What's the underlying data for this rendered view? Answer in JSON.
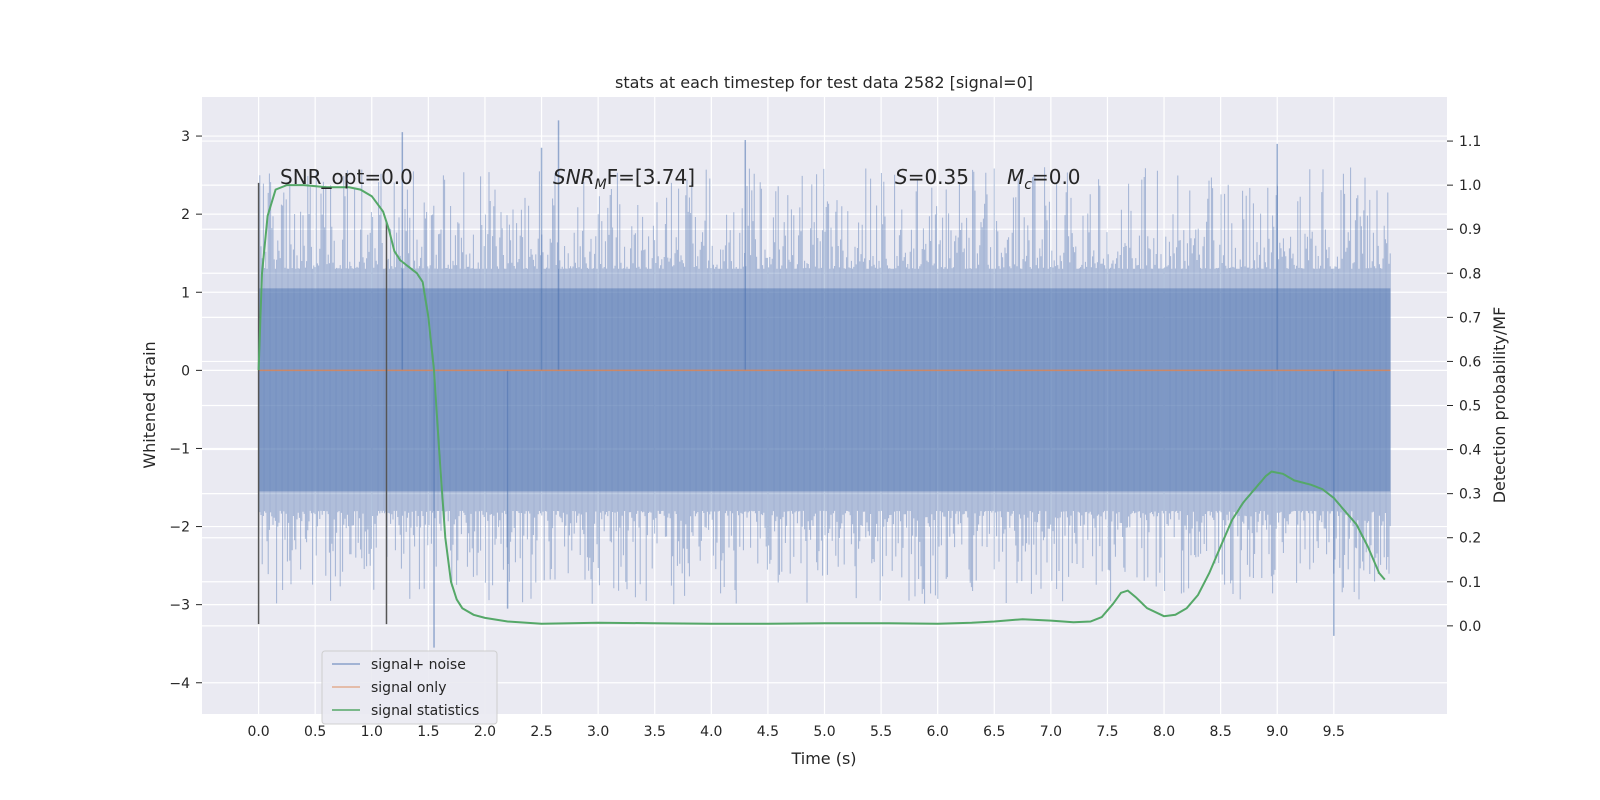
{
  "chart_data": {
    "type": "line",
    "title": "stats at each timestep for test data 2582 [signal=0]",
    "xlabel": "Time (s)",
    "ylabel": "Whitened strain",
    "y2label": "Detection probability/MF",
    "xlim": [
      -0.5,
      10.5
    ],
    "ylim": [
      -4.4,
      3.5
    ],
    "y2lim": [
      -0.2,
      1.2
    ],
    "x_ticks": [
      "0.0",
      "0.5",
      "1.0",
      "1.5",
      "2.0",
      "2.5",
      "3.0",
      "3.5",
      "4.0",
      "4.5",
      "5.0",
      "5.5",
      "6.0",
      "6.5",
      "7.0",
      "7.5",
      "8.0",
      "8.5",
      "9.0",
      "9.5"
    ],
    "y_ticks": [
      "3",
      "2",
      "1",
      "0",
      "−1",
      "−2",
      "−3",
      "−4"
    ],
    "y2_ticks": [
      "1.1",
      "1.0",
      "0.9",
      "0.8",
      "0.7",
      "0.6",
      "0.5",
      "0.4",
      "0.3",
      "0.2",
      "0.1",
      "0.0"
    ],
    "grid": true,
    "legend_position": "lower-left",
    "annotations": {
      "snr_opt": "SNR_opt=0.0",
      "snr_mf_base": "SNR",
      "snr_mf_sub": "M",
      "snr_mf_rest": "F=[3.74]",
      "s_name": "S",
      "s_value": "=0.35",
      "mc_name": "M",
      "mc_sub": "c",
      "mc_value": "=0.0"
    },
    "vertical_markers": [
      {
        "x": 0.0,
        "y_top": 2.4,
        "y_bottom": -3.25
      },
      {
        "x": 1.13,
        "y_top": 1.9,
        "y_bottom": -3.25
      }
    ],
    "series": [
      {
        "name": "signal+ noise",
        "color": "#4c72b0",
        "axis": "left",
        "x_range": [
          0.0,
          10.0
        ],
        "envelope_core": [
          -1.75,
          1.25
        ],
        "peak_values": [
          {
            "x": 1.27,
            "y": 3.05
          },
          {
            "x": 2.5,
            "y": 2.85
          },
          {
            "x": 2.65,
            "y": 3.2
          },
          {
            "x": 4.3,
            "y": 2.95
          },
          {
            "x": 9.0,
            "y": 2.9
          },
          {
            "x": 1.55,
            "y": -3.55
          },
          {
            "x": 9.5,
            "y": -3.4
          },
          {
            "x": 2.2,
            "y": -3.05
          }
        ]
      },
      {
        "name": "signal only",
        "color": "#dd8452",
        "axis": "left",
        "x": [
          0.0,
          10.0
        ],
        "y": [
          0.0,
          0.0
        ]
      },
      {
        "name": "signal statistics",
        "color": "#55a868",
        "axis": "right",
        "x": [
          0.0,
          0.03,
          0.08,
          0.15,
          0.25,
          0.4,
          0.6,
          0.8,
          0.9,
          1.0,
          1.1,
          1.15,
          1.2,
          1.25,
          1.3,
          1.35,
          1.4,
          1.45,
          1.5,
          1.55,
          1.6,
          1.65,
          1.7,
          1.75,
          1.8,
          1.9,
          2.0,
          2.2,
          2.5,
          3.0,
          3.5,
          4.0,
          4.5,
          5.0,
          5.5,
          6.0,
          6.3,
          6.5,
          6.75,
          7.0,
          7.2,
          7.35,
          7.45,
          7.55,
          7.62,
          7.68,
          7.75,
          7.85,
          8.0,
          8.1,
          8.2,
          8.3,
          8.4,
          8.5,
          8.6,
          8.7,
          8.8,
          8.9,
          8.95,
          9.05,
          9.15,
          9.3,
          9.4,
          9.5,
          9.6,
          9.7,
          9.8,
          9.9,
          9.95
        ],
        "y": [
          0.58,
          0.8,
          0.93,
          0.99,
          1.0,
          1.0,
          0.995,
          0.995,
          0.99,
          0.975,
          0.94,
          0.9,
          0.85,
          0.83,
          0.82,
          0.81,
          0.8,
          0.78,
          0.7,
          0.58,
          0.38,
          0.2,
          0.1,
          0.06,
          0.04,
          0.025,
          0.018,
          0.01,
          0.005,
          0.007,
          0.006,
          0.005,
          0.005,
          0.006,
          0.006,
          0.005,
          0.007,
          0.01,
          0.015,
          0.012,
          0.008,
          0.01,
          0.02,
          0.05,
          0.075,
          0.08,
          0.065,
          0.04,
          0.022,
          0.025,
          0.04,
          0.07,
          0.12,
          0.18,
          0.24,
          0.28,
          0.31,
          0.34,
          0.35,
          0.345,
          0.33,
          0.32,
          0.31,
          0.29,
          0.26,
          0.23,
          0.18,
          0.12,
          0.105
        ]
      }
    ]
  }
}
